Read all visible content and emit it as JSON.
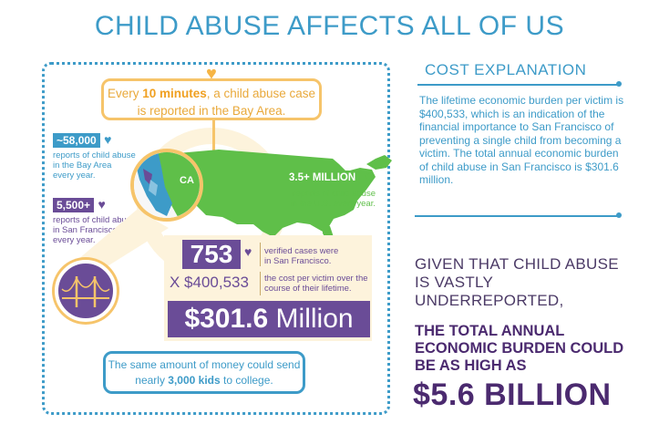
{
  "title": "CHILD ABUSE AFFECTS ALL OF US",
  "left": {
    "frequency": {
      "pre": "Every ",
      "bold": "10 minutes",
      "post": ", a child abuse case is reported in the Bay Area."
    },
    "bay_area": {
      "badge": "~58,000",
      "text1": "reports of child abuse",
      "text2": "in the Bay Area",
      "text3": "every year."
    },
    "sf": {
      "badge": "5,500+",
      "text1": "reports of child abuse",
      "text2": "in San Francisco",
      "text3": "every year."
    },
    "us": {
      "badge": "3.5+ MILLION",
      "text1": "reports of child abuse",
      "text2": "in the U.S. every year."
    },
    "map_label": "CA",
    "cases": {
      "value": "753",
      "text1": "verified cases were",
      "text2": "in San Francisco."
    },
    "cost_per_victim": {
      "value": "X $400,533",
      "text1": "the cost per victim over the",
      "text2": "course of their lifetime."
    },
    "total": {
      "dollar": "$",
      "amount": "301.6",
      "unit": " Million"
    },
    "college": {
      "pre": "The same amount of money could send",
      "mid_pre": "nearly ",
      "bold": "3,000 kids",
      "post": " to college."
    }
  },
  "right": {
    "cost_title": "COST EXPLANATION",
    "cost_text": "The lifetime economic burden per victim is $400,533, which is an indication of the financial importance to San Francisco of preventing a single child from becoming a victim. The total annual economic burden of child abuse in San Francisco is $301.6 million.",
    "given": "GIVEN THAT CHILD ABUSE IS VASTLY UNDERREPORTED,",
    "burden": "THE TOTAL ANNUAL ECONOMIC BURDEN COULD BE AS HIGH AS",
    "big_value": "$5.6 BILLION"
  },
  "colors": {
    "blue": "#3d9bc8",
    "purple": "#6a4c97",
    "green": "#5fbf49",
    "yellow": "#f6c46a",
    "dark_purple": "#4b2a6f"
  },
  "icons": [
    "heart-icon",
    "golden-gate-bridge-icon",
    "us-map",
    "california-magnifier"
  ]
}
